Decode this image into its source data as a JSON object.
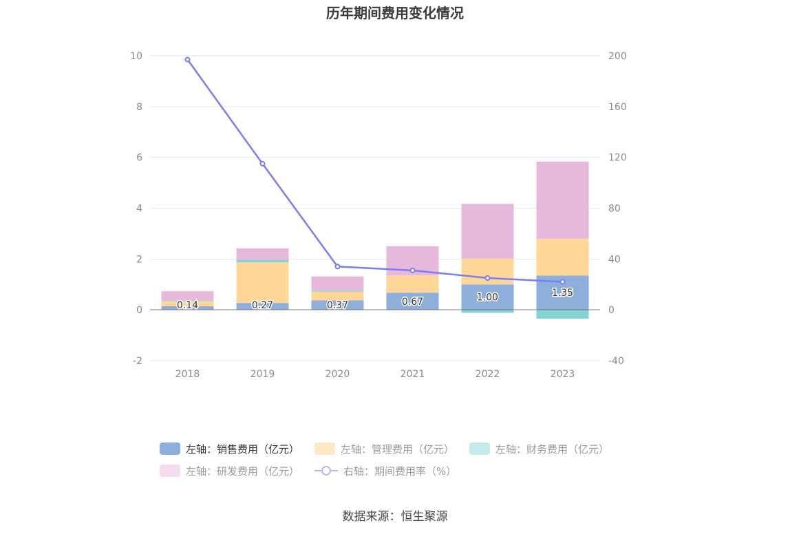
{
  "chart_data": {
    "type": "bar",
    "title": "历年期间费用变化情况",
    "categories": [
      "2018",
      "2019",
      "2020",
      "2021",
      "2022",
      "2023"
    ],
    "left_axis": {
      "min": -2,
      "max": 10,
      "ticks": [
        "-2",
        "0",
        "2",
        "4",
        "6",
        "8",
        "10"
      ]
    },
    "right_axis": {
      "min": -40,
      "max": 200,
      "ticks": [
        "-40",
        "0",
        "40",
        "80",
        "120",
        "160",
        "200"
      ]
    },
    "series": [
      {
        "name": "左轴：销售费用（亿元）",
        "type": "bar",
        "axis": "left",
        "color": "#8eaedc",
        "values": [
          0.14,
          0.27,
          0.37,
          0.67,
          1.0,
          1.35
        ],
        "labels": [
          "0.14",
          "0.27",
          "0.37",
          "0.67",
          "1.00",
          "1.35"
        ]
      },
      {
        "name": "左轴：管理费用（亿元）",
        "type": "bar",
        "axis": "left",
        "color": "#ffd899",
        "values": [
          0.2,
          1.6,
          0.35,
          0.68,
          1.02,
          1.45
        ]
      },
      {
        "name": "左轴：财务费用（亿元）",
        "type": "bar",
        "axis": "left",
        "color": "#83d3d6",
        "values": [
          0.02,
          0.1,
          0.04,
          0.0,
          -0.12,
          -0.35
        ]
      },
      {
        "name": "左轴：研发费用（亿元）",
        "type": "bar",
        "axis": "left",
        "color": "#e6b9dc",
        "values": [
          0.37,
          0.45,
          0.55,
          1.15,
          2.15,
          3.03
        ]
      },
      {
        "name": "右轴：期间费用率（%）",
        "type": "line",
        "axis": "right",
        "color": "#7b7cf3",
        "values": [
          197,
          115,
          34,
          31,
          25,
          22
        ]
      }
    ],
    "legend_position": "bottom",
    "grid": true
  },
  "source": "数据来源：恒生聚源"
}
